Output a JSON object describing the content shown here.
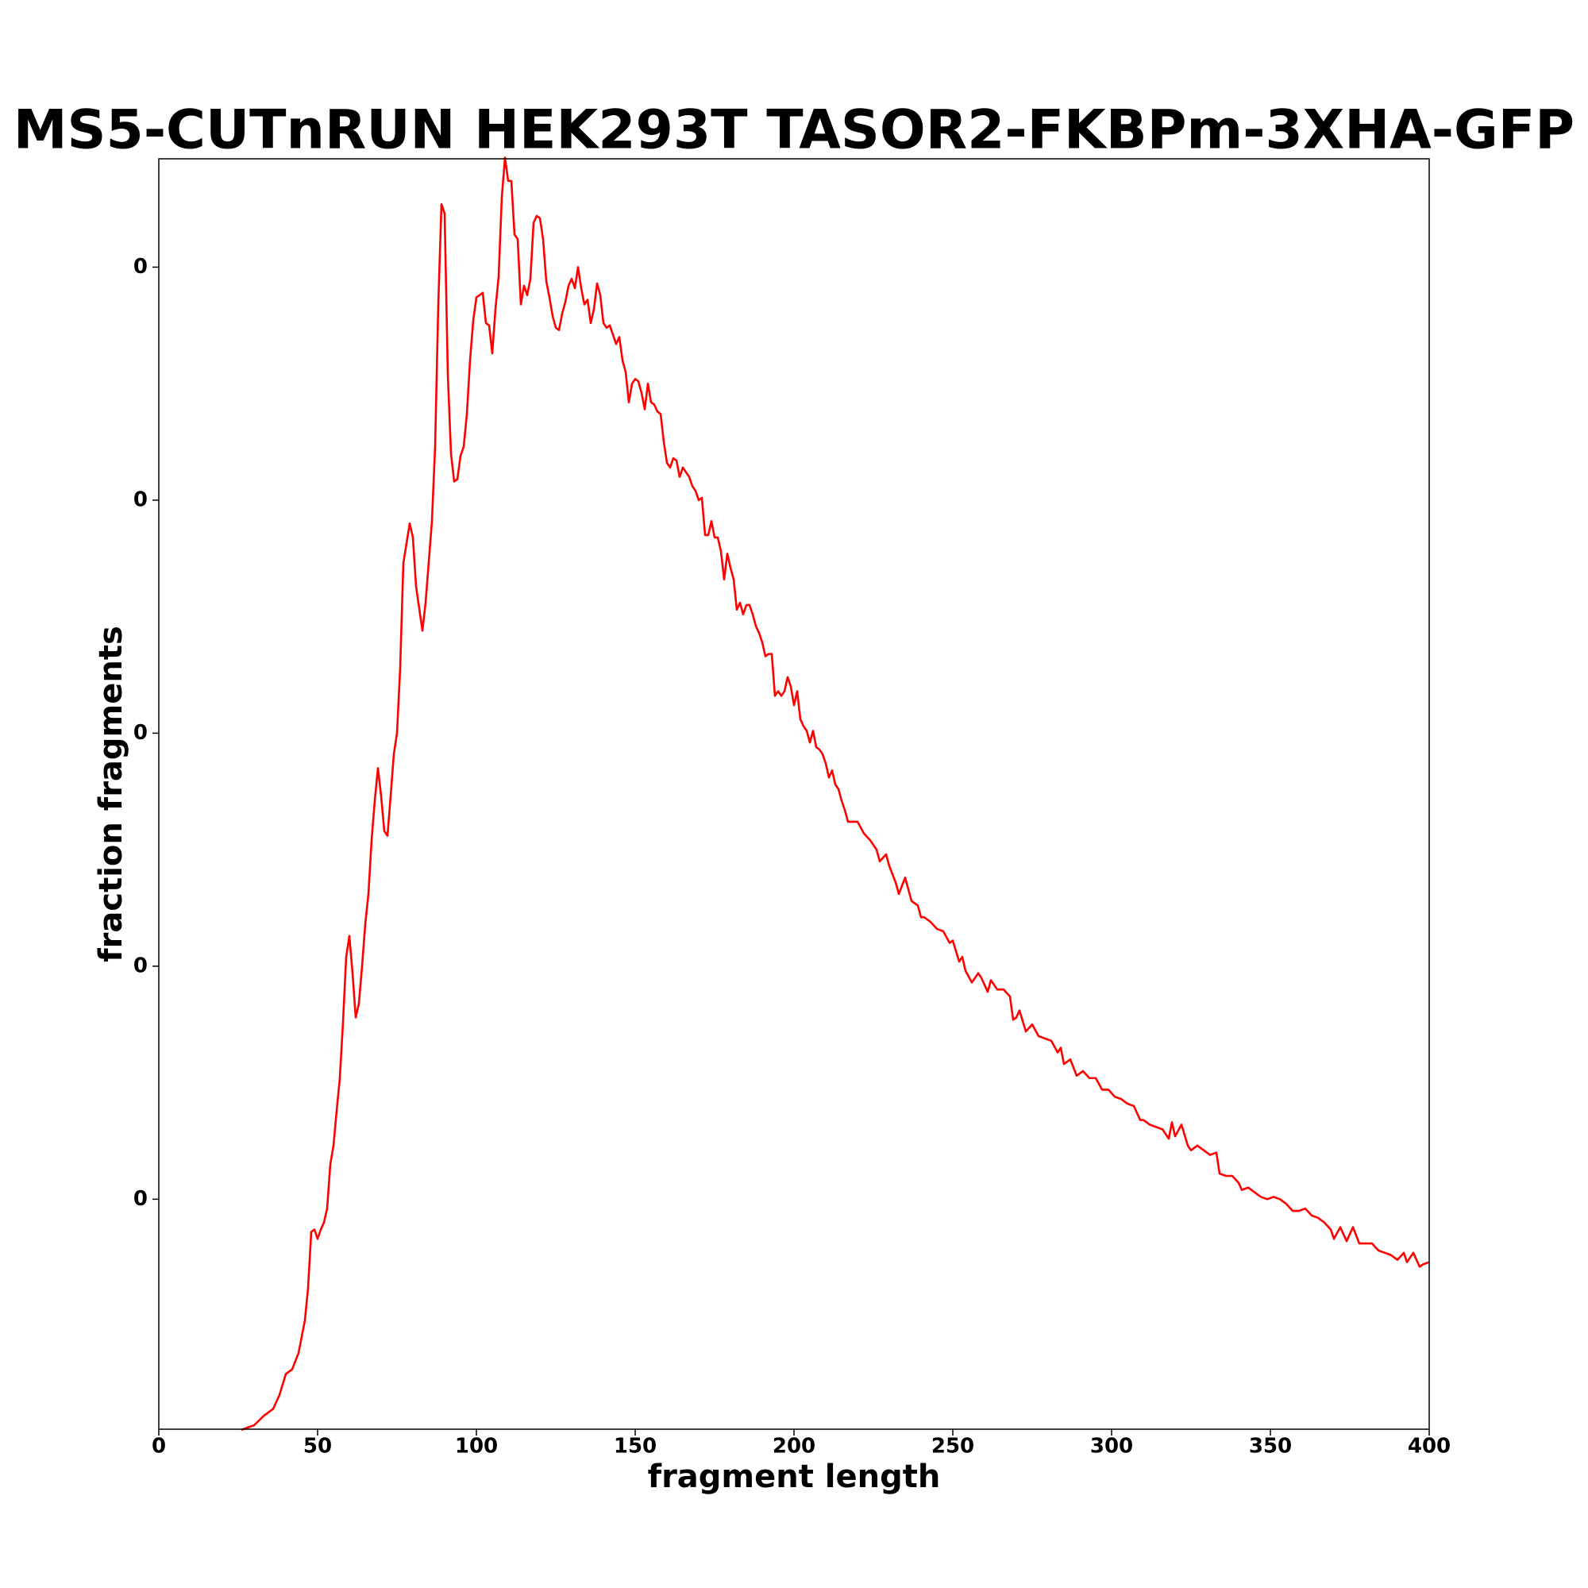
{
  "chart_data": {
    "type": "line",
    "title": "MS5-CUTnRUN HEK293T TASOR2-FKBPm-3XHA-GFP",
    "xlabel": "fragment length",
    "ylabel": "fraction fragments",
    "xlim": [
      0,
      400
    ],
    "xticks": [
      0,
      50,
      100,
      150,
      200,
      250,
      300,
      350,
      400
    ],
    "ylim": [
      1.3e-05,
      0.005465
    ],
    "yticks": [
      {
        "value": 0.001,
        "label": "0"
      },
      {
        "value": 0.002,
        "label": "0"
      },
      {
        "value": 0.003,
        "label": "0"
      },
      {
        "value": 0.004,
        "label": "0"
      },
      {
        "value": 0.005,
        "label": "0"
      }
    ],
    "series": [
      {
        "color": "#ff0000",
        "x": [
          26,
          30,
          33,
          36,
          38,
          40,
          42,
          44,
          46,
          47,
          48,
          49,
          50,
          51,
          52,
          53,
          54,
          55,
          56,
          57,
          58,
          59,
          60,
          61,
          62,
          63,
          64,
          65,
          66,
          67,
          68,
          69,
          70,
          71,
          72,
          73,
          74,
          75,
          76,
          77,
          79,
          80,
          81,
          83,
          84,
          86,
          87,
          88,
          89,
          90,
          91,
          92,
          93,
          94,
          95,
          96,
          97,
          98,
          99,
          100,
          102,
          103,
          104,
          105,
          106,
          107,
          108,
          109,
          110,
          111,
          112,
          113,
          114,
          115,
          116,
          117,
          118,
          119,
          120,
          121,
          122,
          123,
          124,
          125,
          126,
          127,
          128,
          129,
          130,
          131,
          132,
          133,
          134,
          135,
          136,
          137,
          138,
          139,
          140,
          141,
          142,
          143,
          144,
          145,
          146,
          147,
          148,
          149,
          150,
          151,
          152,
          153,
          154,
          155,
          156,
          157,
          158,
          159,
          160,
          161,
          162,
          163,
          164,
          165,
          166,
          167,
          168,
          169,
          170,
          171,
          172,
          173,
          174,
          175,
          176,
          177,
          178,
          179,
          180,
          181,
          182,
          183,
          184,
          185,
          186,
          187,
          188,
          189,
          190,
          191,
          192,
          193,
          194,
          195,
          196,
          197,
          198,
          199,
          200,
          201,
          202,
          203,
          204,
          205,
          206,
          207,
          208,
          209,
          210,
          211,
          212,
          213,
          214,
          215,
          216,
          217,
          218,
          220,
          222,
          224,
          226,
          227,
          229,
          230,
          232,
          233,
          235,
          237,
          239,
          240,
          241,
          243,
          245,
          247,
          249,
          250,
          252,
          253,
          254,
          256,
          258,
          259,
          261,
          262,
          264,
          266,
          268,
          269,
          270,
          271,
          273,
          275,
          277,
          279,
          281,
          283,
          284,
          285,
          287,
          289,
          291,
          293,
          295,
          297,
          299,
          301,
          303,
          305,
          307,
          309,
          310,
          312,
          314,
          316,
          318,
          319,
          320,
          322,
          324,
          325,
          327,
          329,
          331,
          333,
          334,
          336,
          338,
          340,
          341,
          343,
          345,
          347,
          349,
          351,
          353,
          355,
          357,
          359,
          361,
          363,
          365,
          367,
          369,
          370,
          372,
          374,
          376,
          378,
          380,
          382,
          384,
          386,
          388,
          390,
          392,
          393,
          395,
          397,
          398,
          400
        ],
        "values": [
          1e-05,
          3e-05,
          7e-05,
          0.0001,
          0.00016,
          0.00025,
          0.00027,
          0.00034,
          0.00048,
          0.00062,
          0.00086,
          0.00087,
          0.00083,
          0.00087,
          0.0009,
          0.00096,
          0.00115,
          0.00123,
          0.00138,
          0.00152,
          0.00176,
          0.00204,
          0.00213,
          0.00197,
          0.00178,
          0.00184,
          0.002,
          0.00218,
          0.00231,
          0.00254,
          0.00271,
          0.00285,
          0.00273,
          0.00258,
          0.00256,
          0.00273,
          0.00291,
          0.003,
          0.00328,
          0.00373,
          0.0039,
          0.00384,
          0.00363,
          0.00344,
          0.00356,
          0.00391,
          0.00423,
          0.00484,
          0.00527,
          0.00523,
          0.00454,
          0.0042,
          0.00408,
          0.00409,
          0.00419,
          0.00423,
          0.00437,
          0.0046,
          0.00477,
          0.00487,
          0.00489,
          0.00476,
          0.00475,
          0.00463,
          0.00482,
          0.00496,
          0.0053,
          0.00547,
          0.00537,
          0.00537,
          0.00514,
          0.00512,
          0.00484,
          0.00492,
          0.00488,
          0.00495,
          0.00519,
          0.00522,
          0.00521,
          0.00512,
          0.00494,
          0.00487,
          0.00479,
          0.00474,
          0.00473,
          0.0048,
          0.00485,
          0.00492,
          0.00495,
          0.00491,
          0.005,
          0.00491,
          0.00484,
          0.00486,
          0.00476,
          0.00482,
          0.00493,
          0.00488,
          0.00476,
          0.00474,
          0.00475,
          0.00471,
          0.00467,
          0.0047,
          0.0046,
          0.00455,
          0.00442,
          0.0045,
          0.00452,
          0.00451,
          0.00446,
          0.00439,
          0.0045,
          0.00442,
          0.00441,
          0.00438,
          0.00437,
          0.00425,
          0.00416,
          0.00414,
          0.00418,
          0.00417,
          0.0041,
          0.00414,
          0.00412,
          0.0041,
          0.00406,
          0.00404,
          0.004,
          0.00401,
          0.00385,
          0.00385,
          0.00391,
          0.00384,
          0.00384,
          0.00378,
          0.00366,
          0.00377,
          0.00371,
          0.00366,
          0.00353,
          0.00356,
          0.00351,
          0.00355,
          0.00355,
          0.00351,
          0.00346,
          0.00343,
          0.00339,
          0.00333,
          0.00334,
          0.00334,
          0.00316,
          0.00318,
          0.00316,
          0.00318,
          0.00324,
          0.0032,
          0.00312,
          0.00318,
          0.00306,
          0.00303,
          0.00301,
          0.00296,
          0.00301,
          0.00294,
          0.00293,
          0.00291,
          0.00287,
          0.00281,
          0.00284,
          0.00278,
          0.00276,
          0.00271,
          0.00267,
          0.00262,
          0.00262,
          0.00262,
          0.00257,
          0.00254,
          0.0025,
          0.00245,
          0.00248,
          0.00243,
          0.00236,
          0.00231,
          0.00238,
          0.00228,
          0.00226,
          0.00221,
          0.00221,
          0.00219,
          0.00216,
          0.00215,
          0.0021,
          0.00211,
          0.00202,
          0.00204,
          0.00198,
          0.00193,
          0.00197,
          0.00195,
          0.00189,
          0.00194,
          0.0019,
          0.0019,
          0.00187,
          0.00177,
          0.00178,
          0.00181,
          0.00172,
          0.00175,
          0.0017,
          0.00169,
          0.00168,
          0.00163,
          0.00165,
          0.00158,
          0.0016,
          0.00153,
          0.00155,
          0.00152,
          0.00152,
          0.00147,
          0.00147,
          0.00144,
          0.00143,
          0.00141,
          0.0014,
          0.00134,
          0.00134,
          0.00132,
          0.00131,
          0.0013,
          0.00126,
          0.00133,
          0.00127,
          0.00132,
          0.00123,
          0.00121,
          0.00123,
          0.00121,
          0.00119,
          0.0012,
          0.00111,
          0.0011,
          0.0011,
          0.00107,
          0.00104,
          0.00105,
          0.00103,
          0.00101,
          0.001,
          0.00101,
          0.001,
          0.00098,
          0.00095,
          0.00095,
          0.00096,
          0.00093,
          0.00092,
          0.0009,
          0.00087,
          0.00083,
          0.00088,
          0.00082,
          0.00088,
          0.00081,
          0.00081,
          0.00081,
          0.00078,
          0.00077,
          0.00076,
          0.00074,
          0.00077,
          0.00073,
          0.00077,
          0.00071,
          0.00072,
          0.00073
        ]
      }
    ]
  }
}
